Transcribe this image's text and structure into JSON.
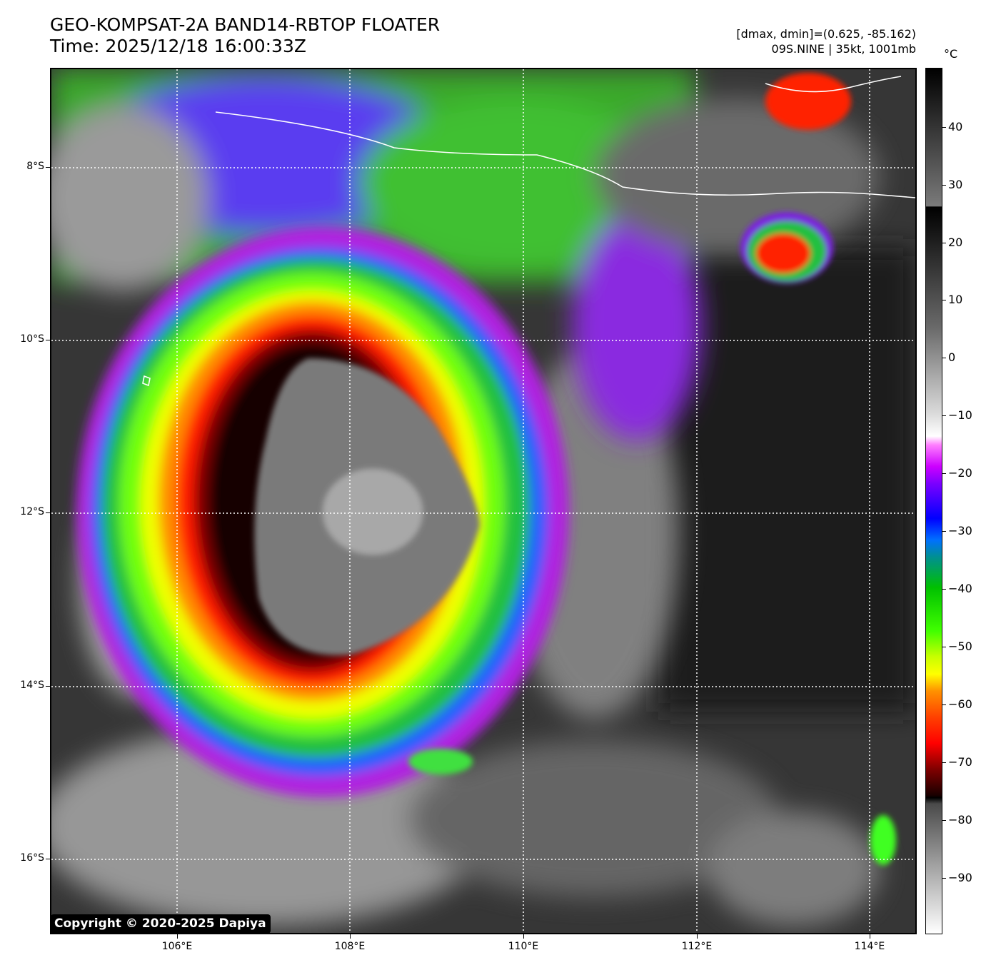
{
  "header": {
    "title_line1": "GEO-KOMPSAT-2A BAND14-RBTOP FLOATER",
    "title_line2": "Time: 2025/12/18 16:00:33Z",
    "dmax_dmin": "[dmax, dmin]=(0.625, -85.162)",
    "storm_info": "09S.NINE | 35kt, 1001mb"
  },
  "map": {
    "lat_labels": [
      "8°S",
      "10°S",
      "12°S",
      "14°S",
      "16°S"
    ],
    "lon_labels": [
      "106°E",
      "108°E",
      "110°E",
      "112°E",
      "114°E"
    ],
    "copyright": "Copyright © 2020-2025 Dapiya"
  },
  "colorbar": {
    "unit": "°C",
    "ticks": [
      "40",
      "30",
      "20",
      "10",
      "0",
      "−10",
      "−20",
      "−30",
      "−40",
      "−50",
      "−60",
      "−70",
      "−80",
      "−90"
    ]
  }
}
